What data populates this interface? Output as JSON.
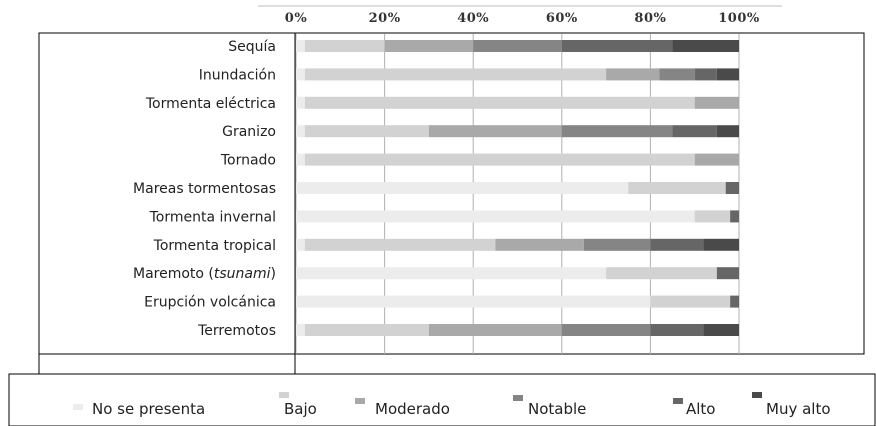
{
  "chart_data": {
    "type": "bar",
    "orientation": "horizontal",
    "stacked": true,
    "normalized": true,
    "title": "",
    "xlabel": "",
    "ylabel": "",
    "xlim": [
      0,
      100
    ],
    "x_ticks": [
      "0%",
      "20%",
      "40%",
      "60%",
      "80%",
      "100%"
    ],
    "grid": true,
    "legend_position": "bottom",
    "categories": [
      "Sequía",
      "Inundación",
      "Tormenta eléctrica",
      "Granizo",
      "Tornado",
      "Mareas tormentosas",
      "Tormenta invernal",
      "Tormenta tropical",
      "Maremoto (tsunami)",
      "Erupción volcánica",
      "Terremotos"
    ],
    "series": [
      {
        "name": "No se presenta",
        "color": "#ececec",
        "values": [
          2,
          2,
          2,
          2,
          2,
          75,
          90,
          2,
          70,
          80,
          2
        ]
      },
      {
        "name": "Bajo",
        "color": "#d2d2d2",
        "values": [
          18,
          68,
          88,
          28,
          88,
          22,
          8,
          43,
          25,
          18,
          28
        ]
      },
      {
        "name": "Moderado",
        "color": "#a9a9a9",
        "values": [
          20,
          12,
          10,
          30,
          10,
          0,
          0,
          20,
          0,
          0,
          30
        ]
      },
      {
        "name": "Notable",
        "color": "#858585",
        "values": [
          20,
          8,
          0,
          25,
          0,
          0,
          0,
          15,
          0,
          0,
          20
        ]
      },
      {
        "name": "Alto",
        "color": "#666666",
        "values": [
          25,
          5,
          0,
          10,
          0,
          3,
          2,
          12,
          5,
          2,
          12
        ]
      },
      {
        "name": "Muy alto",
        "color": "#4a4a4a",
        "values": [
          15,
          5,
          0,
          5,
          0,
          0,
          0,
          8,
          0,
          0,
          8
        ]
      }
    ]
  }
}
